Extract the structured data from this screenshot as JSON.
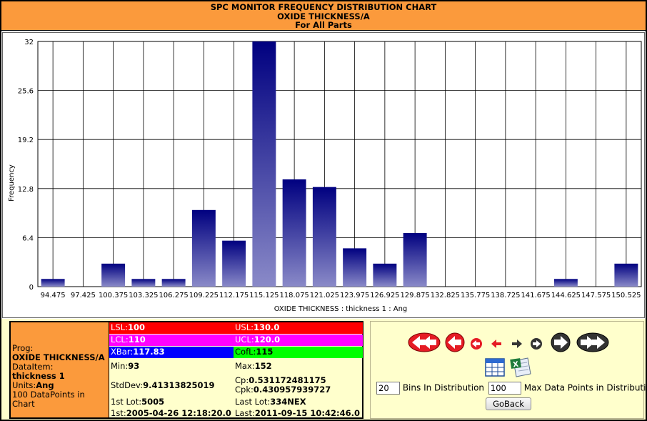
{
  "header": {
    "line1": "SPC MONITOR FREQUENCY DISTRIBUTION CHART",
    "line2": "OXIDE THICKNESS/A",
    "line3": "For All Parts"
  },
  "chart_data": {
    "type": "bar",
    "title": "",
    "xlabel": "OXIDE THICKNESS : thickness 1 : Ang",
    "ylabel": "Frequency",
    "ylim": [
      0,
      32
    ],
    "yticks": [
      "0",
      "6.4",
      "12.8",
      "19.2",
      "25.6",
      "32"
    ],
    "categories": [
      "94.475",
      "97.425",
      "100.375",
      "103.325",
      "106.275",
      "109.225",
      "112.175",
      "115.125",
      "118.075",
      "121.025",
      "123.975",
      "126.925",
      "129.875",
      "132.825",
      "135.775",
      "138.725",
      "141.675",
      "144.625",
      "147.575",
      "150.525"
    ],
    "values": [
      1,
      0,
      3,
      1,
      1,
      10,
      6,
      32,
      14,
      13,
      5,
      3,
      7,
      0,
      0,
      0,
      0,
      1,
      0,
      3
    ],
    "grid": true,
    "bar_color_top": "#000080",
    "bar_color_bottom": "#8a8ac8"
  },
  "prog": {
    "prog_label": "Prog:",
    "prog_value": "OXIDE THICKNESS/A",
    "dataitem_label": "DataItem:",
    "dataitem_value": "thickness 1",
    "units_label": "Units:",
    "units_value": "Ang",
    "datapoints_text": "100 DataPoints in Chart"
  },
  "stats": {
    "lsl_label": "LSL:",
    "lsl_value": "100",
    "usl_label": "USL:",
    "usl_value": "130.0",
    "lcl_label": "LCL:",
    "lcl_value": "110",
    "ucl_label": "UCL:",
    "ucl_value": "120.0",
    "xbar_label": "XBar:",
    "xbar_value": "117.83",
    "cofl_label": "CofL:",
    "cofl_value": "115",
    "min_label": "Min:",
    "min_value": "93",
    "max_label": "Max:",
    "max_value": "152",
    "stddev_label": "StdDev:",
    "stddev_value": "9.41313825019",
    "cp_label": "Cp:",
    "cp_value": "0.531172481175",
    "cpk_label": "Cpk:",
    "cpk_value": "0.430957939727",
    "firstlot_label": "1st Lot:",
    "firstlot_value": "5005",
    "lastlot_label": "Last Lot:",
    "lastlot_value": "334NEX",
    "first_label": "1st:",
    "first_value": "2005-04-26 12:18:20.0",
    "last_label": "Last:",
    "last_value": "2011-09-15 10:42:46.0",
    "colors": {
      "lsl_usl": "#ff0000",
      "lcl_ucl": "#ff00ff",
      "xbar": "#0000ff",
      "cofl": "#00ff00"
    }
  },
  "controls": {
    "bins_value": "20",
    "bins_label": "Bins In Distribution",
    "maxpoints_value": "100",
    "maxpoints_label": "Max Data Points in Distribution",
    "goback_label": "GoBack",
    "icons": [
      "first-page-icon",
      "prev-page-icon",
      "prev-small-icon",
      "prev-arrow-icon",
      "next-arrow-icon",
      "next-small-icon",
      "next-page-icon",
      "last-page-icon",
      "table-view-icon",
      "excel-export-icon"
    ]
  }
}
